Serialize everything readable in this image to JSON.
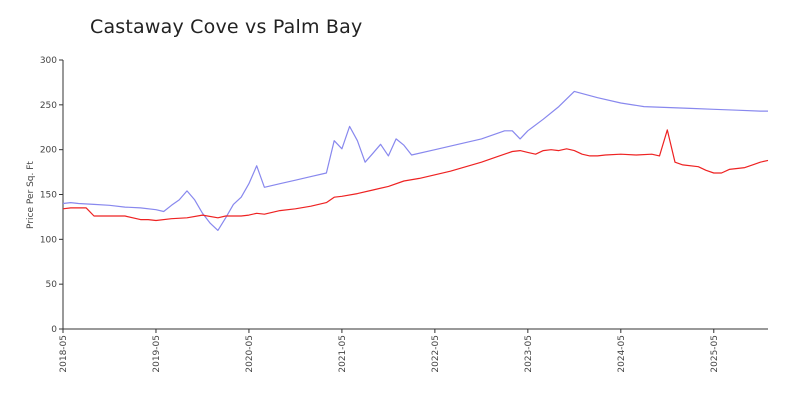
{
  "chart_data": {
    "type": "line",
    "title": "Castaway Cove vs Palm Bay",
    "xlabel": "",
    "ylabel": "Price Per Sq. Ft",
    "ylim": [
      0,
      300
    ],
    "xlim": [
      "2018-05",
      "2025-12"
    ],
    "yticks": [
      0,
      50,
      100,
      150,
      200,
      250,
      300
    ],
    "xticks": [
      "2018-05",
      "2019-05",
      "2020-05",
      "2021-05",
      "2022-05",
      "2023-05",
      "2024-05",
      "2025-05"
    ],
    "grid": false,
    "legend": "none",
    "series": [
      {
        "color": "#8888ee",
        "points": [
          [
            "2018-05",
            140
          ],
          [
            "2018-06",
            141
          ],
          [
            "2018-07",
            140
          ],
          [
            "2018-09",
            139
          ],
          [
            "2018-11",
            138
          ],
          [
            "2019-01",
            136
          ],
          [
            "2019-03",
            135
          ],
          [
            "2019-05",
            133
          ],
          [
            "2019-06",
            131
          ],
          [
            "2019-07",
            138
          ],
          [
            "2019-08",
            144
          ],
          [
            "2019-09",
            154
          ],
          [
            "2019-10",
            144
          ],
          [
            "2019-11",
            129
          ],
          [
            "2019-12",
            118
          ],
          [
            "2020-01",
            110
          ],
          [
            "2020-02",
            124
          ],
          [
            "2020-03",
            139
          ],
          [
            "2020-04",
            147
          ],
          [
            "2020-05",
            162
          ],
          [
            "2020-06",
            182
          ],
          [
            "2020-07",
            158
          ],
          [
            "2020-09",
            162
          ],
          [
            "2020-11",
            166
          ],
          [
            "2021-01",
            170
          ],
          [
            "2021-03",
            174
          ],
          [
            "2021-04",
            210
          ],
          [
            "2021-05",
            201
          ],
          [
            "2021-06",
            226
          ],
          [
            "2021-07",
            210
          ],
          [
            "2021-08",
            186
          ],
          [
            "2021-09",
            196
          ],
          [
            "2021-10",
            206
          ],
          [
            "2021-11",
            193
          ],
          [
            "2021-12",
            212
          ],
          [
            "2022-01",
            205
          ],
          [
            "2022-02",
            194
          ],
          [
            "2022-05",
            200
          ],
          [
            "2022-08",
            206
          ],
          [
            "2022-11",
            212
          ],
          [
            "2023-02",
            221
          ],
          [
            "2023-03",
            221
          ],
          [
            "2023-04",
            212
          ],
          [
            "2023-05",
            221
          ],
          [
            "2023-07",
            234
          ],
          [
            "2023-09",
            248
          ],
          [
            "2023-11",
            265
          ],
          [
            "2024-02",
            258
          ],
          [
            "2024-05",
            252
          ],
          [
            "2024-08",
            248
          ],
          [
            "2024-11",
            247
          ],
          [
            "2025-02",
            246
          ],
          [
            "2025-05",
            245
          ],
          [
            "2025-08",
            244
          ],
          [
            "2025-11",
            243
          ],
          [
            "2025-12",
            243
          ]
        ]
      },
      {
        "color": "#ee2222",
        "points": [
          [
            "2018-05",
            134
          ],
          [
            "2018-06",
            135
          ],
          [
            "2018-08",
            135
          ],
          [
            "2018-09",
            126
          ],
          [
            "2018-11",
            126
          ],
          [
            "2019-01",
            126
          ],
          [
            "2019-03",
            122
          ],
          [
            "2019-04",
            122
          ],
          [
            "2019-05",
            121
          ],
          [
            "2019-07",
            123
          ],
          [
            "2019-09",
            124
          ],
          [
            "2019-11",
            127
          ],
          [
            "2020-01",
            124
          ],
          [
            "2020-02",
            126
          ],
          [
            "2020-04",
            126
          ],
          [
            "2020-05",
            127
          ],
          [
            "2020-06",
            129
          ],
          [
            "2020-07",
            128
          ],
          [
            "2020-09",
            132
          ],
          [
            "2020-11",
            134
          ],
          [
            "2021-01",
            137
          ],
          [
            "2021-03",
            141
          ],
          [
            "2021-04",
            147
          ],
          [
            "2021-05",
            148
          ],
          [
            "2021-07",
            151
          ],
          [
            "2021-09",
            155
          ],
          [
            "2021-11",
            159
          ],
          [
            "2022-01",
            165
          ],
          [
            "2022-03",
            168
          ],
          [
            "2022-05",
            172
          ],
          [
            "2022-07",
            176
          ],
          [
            "2022-09",
            181
          ],
          [
            "2022-11",
            186
          ],
          [
            "2023-01",
            192
          ],
          [
            "2023-03",
            198
          ],
          [
            "2023-04",
            199
          ],
          [
            "2023-05",
            197
          ],
          [
            "2023-06",
            195
          ],
          [
            "2023-07",
            199
          ],
          [
            "2023-08",
            200
          ],
          [
            "2023-09",
            199
          ],
          [
            "2023-10",
            201
          ],
          [
            "2023-11",
            199
          ],
          [
            "2023-12",
            195
          ],
          [
            "2024-01",
            193
          ],
          [
            "2024-02",
            193
          ],
          [
            "2024-03",
            194
          ],
          [
            "2024-05",
            195
          ],
          [
            "2024-07",
            194
          ],
          [
            "2024-09",
            195
          ],
          [
            "2024-10",
            193
          ],
          [
            "2024-11",
            222
          ],
          [
            "2024-12",
            186
          ],
          [
            "2025-01",
            183
          ],
          [
            "2025-03",
            181
          ],
          [
            "2025-04",
            177
          ],
          [
            "2025-05",
            174
          ],
          [
            "2025-06",
            174
          ],
          [
            "2025-07",
            178
          ],
          [
            "2025-09",
            180
          ],
          [
            "2025-10",
            183
          ],
          [
            "2025-11",
            186
          ],
          [
            "2025-12",
            188
          ]
        ]
      }
    ]
  }
}
